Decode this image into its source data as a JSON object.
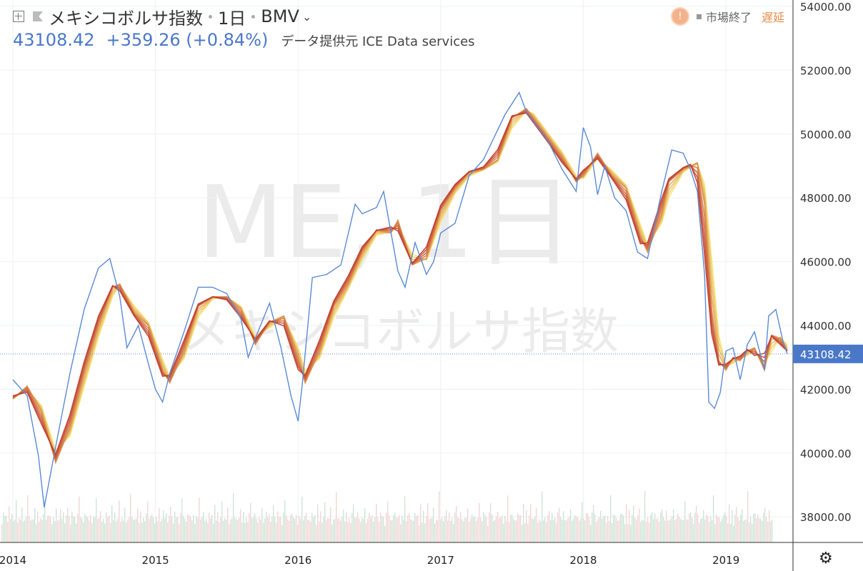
{
  "header": {
    "symbol_name": "メキシコボルサ指数",
    "interval": "1日",
    "exchange": "BMV",
    "last_price": "43108.42",
    "change": "+359.26 (+0.84%)",
    "data_provider": "データ提供元 ICE Data services",
    "market_status": "市場終了",
    "delay_label": "遅延"
  },
  "watermark": {
    "line1": "ME, 1日",
    "line2": "メキシコボルサ指数"
  },
  "icons": {
    "warning": "warning-icon",
    "settings": "gear-icon",
    "add": "plus-box-icon"
  },
  "colors": {
    "price_line": "#5b8ad6",
    "ma_ribbon_from": "#f5e270",
    "ma_ribbon_to": "#c0392b",
    "volume_up": "#cfe5d8",
    "volume_down": "#f2d6d6",
    "last_price_label_bg": "#4a78c9"
  },
  "chart_data": {
    "type": "line",
    "title": "メキシコボルサ指数",
    "x_ticks": [
      "2014",
      "2015",
      "2016",
      "2017",
      "2018",
      "2019"
    ],
    "y_ticks": [
      "38000.00",
      "40000.00",
      "42000.00",
      "44000.00",
      "46000.00",
      "48000.00",
      "50000.00",
      "52000.00",
      "54000.00"
    ],
    "ylim": [
      37200,
      54200
    ],
    "xlim": [
      2014.0,
      2019.43
    ],
    "last_price_label": "43108.42",
    "last_price": 43108.42,
    "series": [
      {
        "kind": "price",
        "x": [
          2014.0,
          2014.1,
          2014.18,
          2014.22,
          2014.3,
          2014.4,
          2014.5,
          2014.6,
          2014.68,
          2014.75,
          2014.8,
          2014.88,
          2014.95,
          2015.0,
          2015.05,
          2015.1,
          2015.2,
          2015.3,
          2015.4,
          2015.5,
          2015.6,
          2015.65,
          2015.7,
          2015.8,
          2015.88,
          2015.95,
          2016.0,
          2016.03,
          2016.1,
          2016.2,
          2016.3,
          2016.4,
          2016.45,
          2016.55,
          2016.6,
          2016.7,
          2016.75,
          2016.82,
          2016.9,
          2016.95,
          2017.0,
          2017.1,
          2017.2,
          2017.3,
          2017.45,
          2017.55,
          2017.6,
          2017.65,
          2017.75,
          2017.85,
          2017.95,
          2018.0,
          2018.05,
          2018.1,
          2018.15,
          2018.22,
          2018.3,
          2018.38,
          2018.45,
          2018.55,
          2018.62,
          2018.7,
          2018.75,
          2018.8,
          2018.85,
          2018.88,
          2018.92,
          2018.96,
          2019.0,
          2019.05,
          2019.1,
          2019.15,
          2019.2,
          2019.27,
          2019.3,
          2019.35,
          2019.4,
          2019.43
        ],
        "values": [
          42300,
          41800,
          39900,
          38300,
          40200,
          42500,
          44500,
          45800,
          46100,
          44900,
          43300,
          44000,
          42800,
          42000,
          41600,
          42500,
          43800,
          45200,
          45200,
          45000,
          44200,
          43000,
          43600,
          44700,
          43300,
          41800,
          41000,
          42200,
          45500,
          45600,
          45900,
          47800,
          47500,
          47700,
          48200,
          45700,
          45200,
          46600,
          45600,
          46000,
          46900,
          47200,
          48700,
          49200,
          50600,
          51300,
          50700,
          50400,
          49800,
          48900,
          48200,
          50200,
          49600,
          48100,
          49000,
          48000,
          47600,
          46300,
          46100,
          48200,
          49500,
          49400,
          48900,
          48200,
          45600,
          41600,
          41400,
          41900,
          43200,
          43300,
          42300,
          43400,
          43800,
          42600,
          44300,
          44500,
          43500,
          43108
        ]
      },
      {
        "kind": "moving_average_ribbon",
        "x": [
          2014.0,
          2014.1,
          2014.2,
          2014.3,
          2014.4,
          2014.5,
          2014.6,
          2014.7,
          2014.75,
          2014.85,
          2014.95,
          2015.05,
          2015.1,
          2015.2,
          2015.3,
          2015.4,
          2015.5,
          2015.6,
          2015.7,
          2015.8,
          2015.9,
          2016.0,
          2016.05,
          2016.15,
          2016.25,
          2016.35,
          2016.45,
          2016.55,
          2016.65,
          2016.7,
          2016.8,
          2016.9,
          2017.0,
          2017.1,
          2017.2,
          2017.3,
          2017.4,
          2017.5,
          2017.6,
          2017.65,
          2017.75,
          2017.85,
          2017.95,
          2018.0,
          2018.1,
          2018.2,
          2018.3,
          2018.4,
          2018.45,
          2018.55,
          2018.6,
          2018.7,
          2018.75,
          2018.8,
          2018.85,
          2018.9,
          2018.95,
          2019.0,
          2019.05,
          2019.1,
          2019.15,
          2019.2,
          2019.27,
          2019.32,
          2019.38,
          2019.43
        ],
        "values": [
          41700,
          42100,
          41300,
          39700,
          40800,
          42500,
          44000,
          45200,
          45300,
          44400,
          44000,
          42600,
          42200,
          43200,
          44600,
          44900,
          44900,
          44500,
          43400,
          44100,
          44300,
          43000,
          42200,
          43200,
          44600,
          45300,
          46300,
          47000,
          46900,
          47300,
          45900,
          46100,
          47600,
          48300,
          48800,
          48900,
          49200,
          50500,
          50800,
          50500,
          49900,
          49300,
          48500,
          48700,
          49400,
          48700,
          48300,
          46800,
          46300,
          47500,
          48500,
          48900,
          49000,
          49100,
          47800,
          44500,
          42900,
          42600,
          43000,
          42900,
          43200,
          43300,
          42600,
          43700,
          43600,
          43200
        ]
      }
    ],
    "volume": {
      "note": "volume histogram shown along the bottom of the plot (approximate relative heights 0-1)",
      "relative": [
        0.3,
        0.35,
        0.4,
        0.32,
        0.28,
        0.45,
        0.3,
        0.38,
        0.26,
        0.33,
        0.5,
        0.31,
        0.29,
        0.36,
        0.41,
        0.3,
        0.27,
        0.35,
        0.6,
        0.33,
        0.3,
        0.28,
        0.34,
        0.4,
        0.3,
        0.36,
        0.32,
        0.29,
        0.31,
        0.35,
        0.55,
        0.3,
        0.33,
        0.38,
        0.3,
        0.28
      ]
    }
  }
}
